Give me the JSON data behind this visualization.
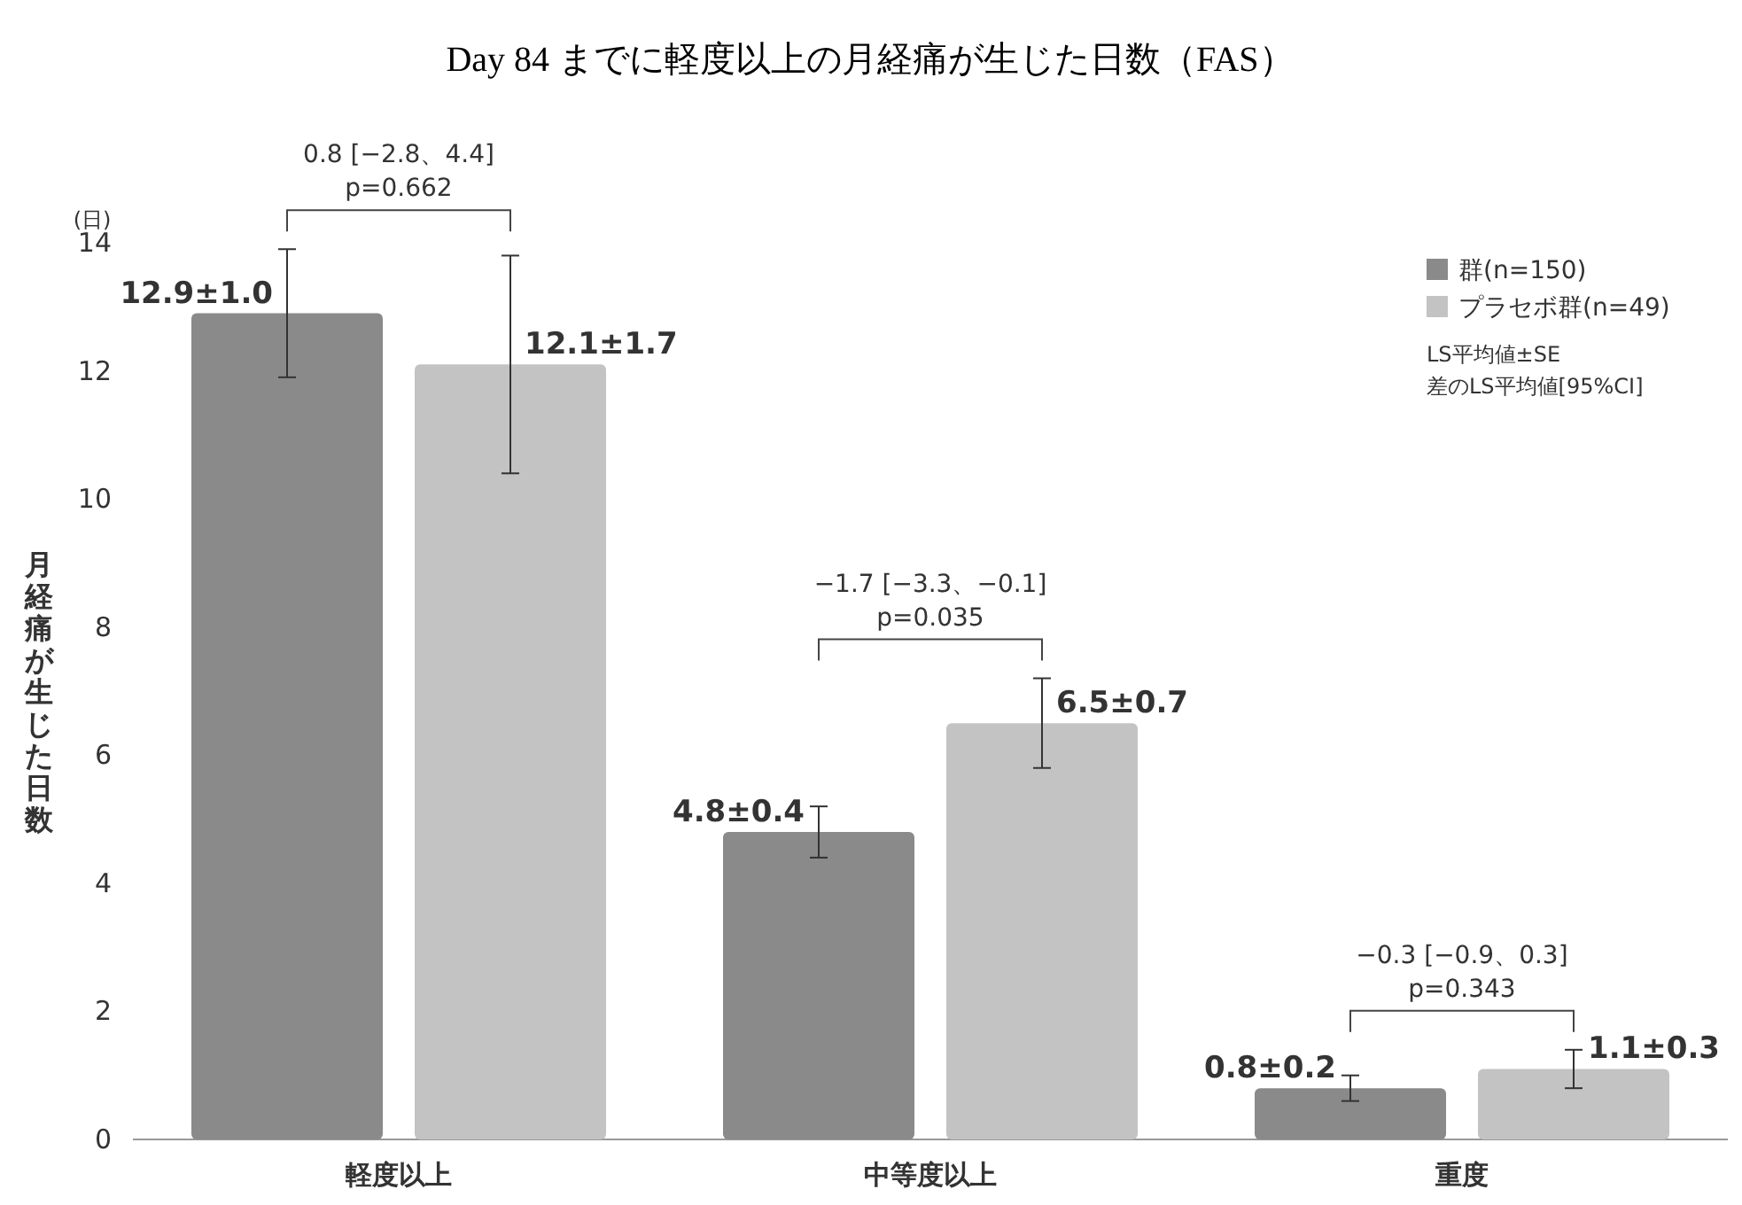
{
  "chart_data": {
    "type": "bar",
    "title": "Day 84 までに軽度以上の月経痛が生じた日数（FAS）",
    "ylabel": "月経痛が生じた日数",
    "categories": [
      "軽度以上",
      "中等度以上",
      "重度"
    ],
    "series": [
      {
        "name": "群(n=150)",
        "color": "#8a8a8a",
        "values": [
          12.9,
          4.8,
          0.8
        ],
        "errors": [
          1.0,
          0.4,
          0.2
        ],
        "value_labels": [
          "12.9±1.0",
          "4.8±0.4",
          "0.8±0.2"
        ]
      },
      {
        "name": "プラセボ群(n=49)",
        "color": "#c3c3c3",
        "values": [
          12.1,
          6.5,
          1.1
        ],
        "errors": [
          1.7,
          0.7,
          0.3
        ],
        "value_labels": [
          "12.1±1.7",
          "6.5±0.7",
          "1.1±0.3"
        ]
      }
    ],
    "ylim": [
      0,
      14
    ],
    "yticks": [
      0,
      2,
      4,
      6,
      8,
      10,
      12,
      14
    ],
    "grid": false,
    "legend": "top right",
    "annotations": [
      "0.8 [−2.8、4.4]\np=0.662",
      "−1.7 [−3.3、−0.1]\np=0.035",
      "−0.3 [−0.9、0.3]\np=0.343",
      "(日)",
      "LS平均値±SE",
      "差のLS平均値[95%CI]"
    ]
  }
}
